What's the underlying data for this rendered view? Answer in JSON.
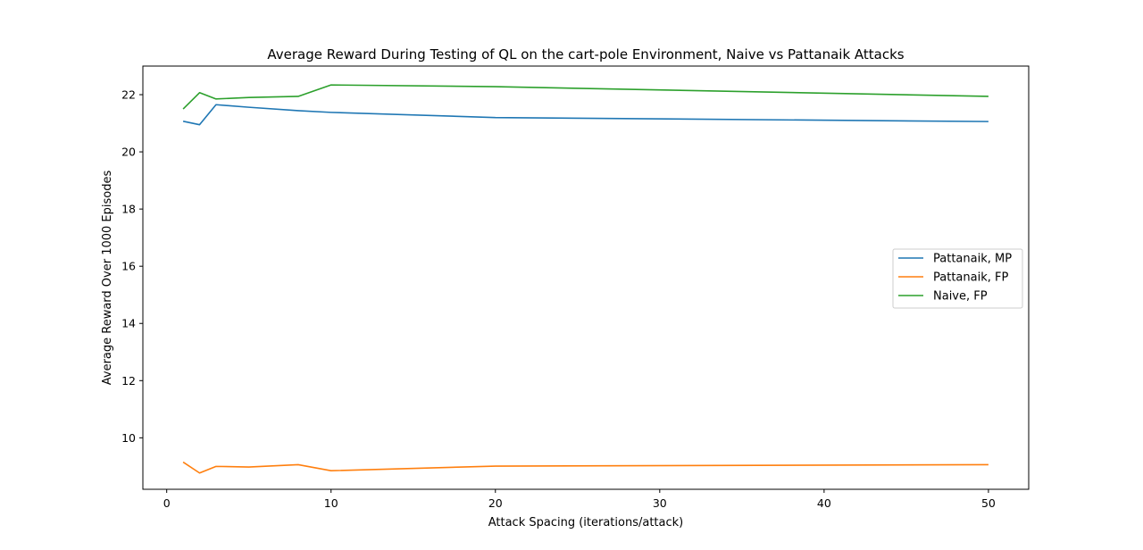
{
  "chart_data": {
    "type": "line",
    "title": "Average Reward During Testing of QL on the cart-pole Environment, Naive vs Pattanaik Attacks",
    "xlabel": "Attack Spacing (iterations/attack)",
    "ylabel": "Average Reward Over 1000 Episodes",
    "xlim": [
      -1.45,
      52.45
    ],
    "ylim": [
      8.2,
      23.0
    ],
    "xticks": [
      0,
      10,
      20,
      30,
      40,
      50
    ],
    "yticks": [
      10,
      12,
      14,
      16,
      18,
      20,
      22
    ],
    "grid": false,
    "legend_position": "center-right",
    "x": [
      1,
      2,
      3,
      5,
      8,
      10,
      20,
      50
    ],
    "series": [
      {
        "name": "Pattanaik, MP",
        "color": "#1f77b4",
        "values": [
          21.07,
          20.95,
          21.65,
          21.56,
          21.44,
          21.38,
          21.2,
          21.06
        ]
      },
      {
        "name": "Pattanaik, FP",
        "color": "#ff7f0e",
        "values": [
          9.15,
          8.77,
          9.0,
          8.98,
          9.06,
          8.85,
          9.01,
          9.06
        ]
      },
      {
        "name": "Naive, FP",
        "color": "#2ca02c",
        "values": [
          21.5,
          22.07,
          21.85,
          21.9,
          21.94,
          22.34,
          22.28,
          21.94
        ]
      }
    ]
  }
}
